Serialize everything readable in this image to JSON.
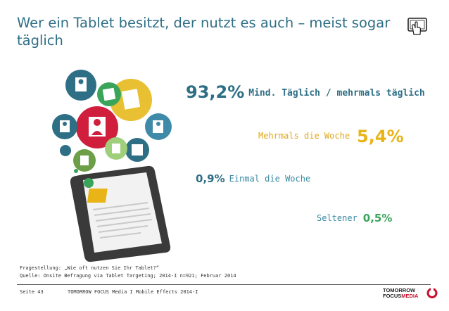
{
  "header": {
    "title": "Wer ein Tablet besitzt, der nutzt es auch – meist sogar täglich",
    "icon": "tablet-touch-icon"
  },
  "chart_data": {
    "type": "table",
    "rows": [
      {
        "label": "Mind. Täglich / mehrmals täglich",
        "value": 93.2,
        "display": "93,2%",
        "color": "#2f6f86"
      },
      {
        "label": "Mehrmals die Woche",
        "value": 5.4,
        "display": "5,4%",
        "color": "#e8b418"
      },
      {
        "label": "Einmal die Woche",
        "value": 0.9,
        "display": "0,9%",
        "color": "#2f6f86"
      },
      {
        "label": "Seltener",
        "value": 0.5,
        "display": "0,5%",
        "color": "#3aa55a"
      }
    ]
  },
  "footnote": {
    "question": "Fragestellung: „Wie oft nutzen Sie Ihr Tablet?“",
    "source": "Quelle: Onsite Befragung via Tablet Targeting; 2014-I n=921; Februar 2014"
  },
  "footer": {
    "page": "Seite 43",
    "center": "TOMORROW FOCUS Media  I  Mobile Effects 2014-I",
    "logo_line1": "TOMORROW",
    "logo_line2a": "FOCUS",
    "logo_line2b": "MEDIA"
  },
  "colors": {
    "primary": "#2f6f86",
    "yellow": "#e8b418",
    "green": "#3aa55a",
    "red": "#c8102e"
  }
}
